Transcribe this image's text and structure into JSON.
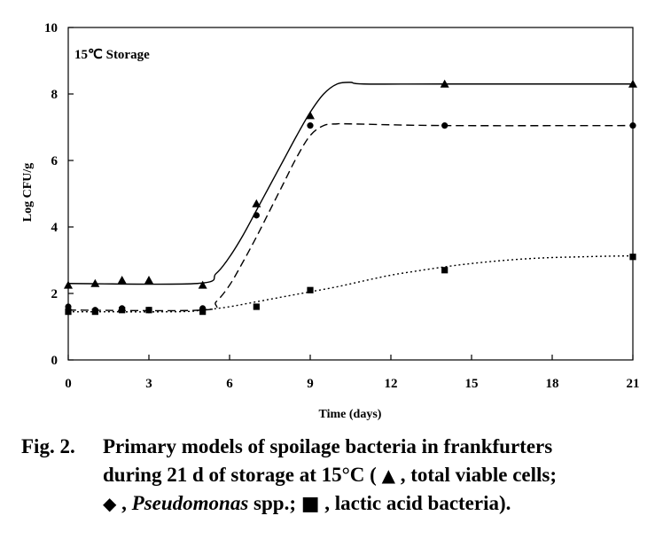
{
  "chart_data": {
    "type": "line",
    "title": "",
    "inset_label": "15℃ Storage",
    "xlabel": "Time (days)",
    "ylabel": "Log CFU/g",
    "xlim": [
      0,
      21
    ],
    "ylim": [
      0,
      10
    ],
    "xticks": [
      0,
      3,
      6,
      9,
      12,
      15,
      18,
      21
    ],
    "yticks": [
      0,
      2,
      4,
      6,
      8,
      10
    ],
    "grid": false,
    "legend": "none (identified in caption)",
    "series": [
      {
        "name": "total viable cells",
        "marker": "triangle",
        "line_style": "solid",
        "x": [
          0,
          1,
          2,
          3,
          5,
          7,
          9,
          14,
          21
        ],
        "y": [
          2.25,
          2.3,
          2.4,
          2.4,
          2.25,
          4.7,
          7.35,
          8.3,
          8.3
        ],
        "fit_x": [
          0,
          4.8,
          5.5,
          6,
          6.5,
          7,
          7.5,
          8,
          8.5,
          9,
          9.5,
          10,
          10.5,
          11,
          14,
          21
        ],
        "fit_y": [
          2.3,
          2.3,
          2.6,
          3.1,
          3.75,
          4.5,
          5.25,
          6.0,
          6.75,
          7.45,
          8.0,
          8.3,
          8.35,
          8.3,
          8.3,
          8.3
        ]
      },
      {
        "name": "Pseudomonas spp.",
        "marker": "diamond",
        "line_style": "dashed",
        "x": [
          0,
          1,
          2,
          3,
          5,
          7,
          9,
          14,
          21
        ],
        "y": [
          1.6,
          1.5,
          1.55,
          1.5,
          1.55,
          4.35,
          7.05,
          7.05,
          7.05
        ],
        "fit_x": [
          0,
          5,
          5.5,
          6,
          6.5,
          7,
          7.5,
          8,
          8.5,
          9,
          9.5,
          10,
          10.5,
          14,
          21
        ],
        "fit_y": [
          1.5,
          1.5,
          1.75,
          2.25,
          2.95,
          3.7,
          4.5,
          5.3,
          6.1,
          6.75,
          7.05,
          7.1,
          7.1,
          7.05,
          7.05
        ]
      },
      {
        "name": "lactic acid bacteria",
        "marker": "square",
        "line_style": "dotted",
        "x": [
          0,
          1,
          2,
          3,
          5,
          7,
          9,
          14,
          21
        ],
        "y": [
          1.45,
          1.45,
          1.5,
          1.5,
          1.45,
          1.6,
          2.1,
          2.7,
          3.1
        ],
        "fit_x": [
          0,
          4,
          5,
          6,
          7,
          8,
          9,
          10,
          11,
          12,
          13,
          14,
          15,
          16,
          17,
          18,
          19,
          20,
          21
        ],
        "fit_y": [
          1.45,
          1.45,
          1.5,
          1.6,
          1.75,
          1.9,
          2.05,
          2.2,
          2.38,
          2.55,
          2.68,
          2.8,
          2.9,
          2.98,
          3.04,
          3.08,
          3.1,
          3.12,
          3.13
        ]
      }
    ]
  },
  "caption": {
    "fig_no": "Fig. 2.",
    "line1": "Primary models of spoilage bacteria in frankfurters",
    "line2a": "during 21 d of storage at 15°C ( ",
    "sym_triangle": "▲",
    "line2b": " , total viable cells;",
    "sym_diamond": "◆",
    "line3a": " , ",
    "italic": "Pseudomonas",
    "line3b": " spp.; ",
    "sym_square": "■",
    "line3c": " , lactic acid bacteria)."
  }
}
